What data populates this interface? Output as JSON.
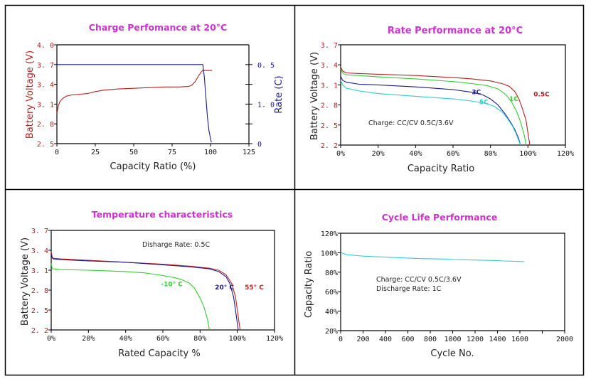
{
  "chart_data": [
    {
      "id": "charge",
      "type": "line",
      "title": "Charge Perfomance at  20°C",
      "xlabel": "Capacity Ratio (%)",
      "ylabel": "Battery Voltage (V)",
      "y2label": "Rate (C)",
      "xlim": [
        0,
        125
      ],
      "ylim": [
        2.5,
        4.0
      ],
      "xticks": [
        "0",
        "25",
        "50",
        "75",
        "100",
        "125"
      ],
      "xtick_values": [
        0,
        25,
        50,
        75,
        100,
        125
      ],
      "yticks": [
        "2. 5",
        "2. 8",
        "3. 1",
        "3. 4",
        "3. 7",
        "4. 0"
      ],
      "ytick_values": [
        2.5,
        2.8,
        3.1,
        3.4,
        3.7,
        4.0
      ],
      "y2ticks": [
        {
          "label": "0.  5",
          "at_y": 3.7
        },
        {
          "label": "",
          "at_y": 3.4
        },
        {
          "label": "1. 0",
          "at_y": 3.1
        },
        {
          "label": "",
          "at_y": 2.8
        },
        {
          "label": "0",
          "at_y": 2.5
        }
      ],
      "grid": false,
      "series": [
        {
          "name": "Voltage",
          "axis": "left",
          "color": "#b22222",
          "x": [
            0,
            1,
            2,
            4,
            6,
            10,
            15,
            20,
            25,
            30,
            40,
            50,
            60,
            70,
            80,
            86,
            88,
            90,
            92,
            94,
            95,
            97,
            101
          ],
          "y": [
            2.96,
            3.08,
            3.14,
            3.19,
            3.22,
            3.24,
            3.25,
            3.26,
            3.29,
            3.31,
            3.33,
            3.34,
            3.35,
            3.36,
            3.36,
            3.37,
            3.39,
            3.44,
            3.52,
            3.59,
            3.61,
            3.61,
            3.61
          ]
        },
        {
          "name": "Rate",
          "axis": "right",
          "color": "#1a1a8c",
          "note": "values plotted in left-axis units as drawn (top level labelled 0.5, bottom labelled 0)",
          "x": [
            0,
            95,
            96,
            97,
            98,
            99,
            100,
            100.5
          ],
          "y": [
            3.7,
            3.7,
            3.5,
            3.2,
            2.9,
            2.7,
            2.58,
            2.52
          ]
        }
      ]
    },
    {
      "id": "rate",
      "type": "line",
      "title": "Rate Performance at 20°C",
      "xlabel": "Capacity Ratio",
      "ylabel": "Battery Voltage (V)",
      "xlim": [
        0,
        120
      ],
      "ylim": [
        2.2,
        3.7
      ],
      "xticks": [
        "0%",
        "20%",
        "40%",
        "60%",
        "80%",
        "100%",
        "120%"
      ],
      "xtick_values": [
        0,
        20,
        40,
        60,
        80,
        100,
        120
      ],
      "yticks": [
        "2. 2",
        "2. 5",
        "2. 8",
        "3. 1",
        "3. 4",
        "3. 7"
      ],
      "ytick_values": [
        2.2,
        2.5,
        2.8,
        3.1,
        3.4,
        3.7
      ],
      "grid": false,
      "annotation": "Charge: CC/CV 0.5C/3.6V",
      "series": [
        {
          "name": "0.5C",
          "color": "#b22222",
          "x": [
            0,
            1,
            3,
            10,
            20,
            40,
            60,
            70,
            80,
            86,
            90,
            93,
            95,
            97,
            99,
            100,
            101
          ],
          "y": [
            3.37,
            3.31,
            3.28,
            3.27,
            3.26,
            3.24,
            3.21,
            3.19,
            3.16,
            3.12,
            3.08,
            3.0,
            2.9,
            2.75,
            2.57,
            2.38,
            2.2
          ]
        },
        {
          "name": "1C",
          "color": "#33cc33",
          "x": [
            0,
            1,
            3,
            10,
            20,
            40,
            60,
            70,
            78,
            84,
            88,
            91,
            94,
            96,
            98,
            99
          ],
          "y": [
            3.34,
            3.28,
            3.25,
            3.24,
            3.22,
            3.19,
            3.15,
            3.12,
            3.09,
            3.04,
            2.96,
            2.86,
            2.7,
            2.55,
            2.35,
            2.2
          ]
        },
        {
          "name": "3C",
          "color": "#1a1a8c",
          "x": [
            0,
            1,
            3,
            10,
            20,
            40,
            60,
            70,
            76,
            80,
            84,
            88,
            91,
            93,
            95,
            96
          ],
          "y": [
            3.23,
            3.17,
            3.14,
            3.11,
            3.1,
            3.07,
            3.03,
            2.99,
            2.95,
            2.89,
            2.8,
            2.66,
            2.53,
            2.43,
            2.3,
            2.2
          ]
        },
        {
          "name": "5C",
          "color": "#33cccc",
          "x": [
            0,
            1,
            3,
            10,
            20,
            40,
            60,
            70,
            78,
            82,
            86,
            89,
            92,
            94,
            96
          ],
          "y": [
            3.17,
            3.1,
            3.05,
            3.01,
            2.97,
            2.93,
            2.89,
            2.86,
            2.82,
            2.78,
            2.7,
            2.6,
            2.47,
            2.35,
            2.2
          ]
        }
      ],
      "series_labels": [
        {
          "text": "0.5C",
          "x": 103,
          "y": 2.93,
          "color": "#b22222"
        },
        {
          "text": "1C",
          "x": 90,
          "y": 2.86,
          "color": "#33cc33"
        },
        {
          "text": "3C",
          "x": 70,
          "y": 2.96,
          "color": "#1a1a8c"
        },
        {
          "text": "5C",
          "x": 74,
          "y": 2.81,
          "color": "#33cccc"
        }
      ]
    },
    {
      "id": "temperature",
      "type": "line",
      "title": "Temperature characteristics",
      "xlabel": "Rated Capacity %",
      "ylabel": "Battery Voltage (V)",
      "xlim": [
        0,
        120
      ],
      "ylim": [
        2.2,
        3.7
      ],
      "xticks": [
        "0%",
        "20%",
        "40%",
        "60%",
        "80%",
        "100%",
        "120%"
      ],
      "xtick_values": [
        0,
        20,
        40,
        60,
        80,
        100,
        120
      ],
      "yticks": [
        "2. 2",
        "2. 5",
        "2. 8",
        "3. 1",
        "3. 4",
        "3. 7"
      ],
      "ytick_values": [
        2.2,
        2.5,
        2.8,
        3.1,
        3.4,
        3.7
      ],
      "grid": false,
      "annotation": "Disharge Rate: 0.5C",
      "series": [
        {
          "name": "55° C",
          "color": "#cc2222",
          "x": [
            0,
            0.5,
            1,
            5,
            20,
            40,
            60,
            75,
            85,
            90,
            94,
            97,
            99,
            100,
            101,
            101.5
          ],
          "y": [
            3.38,
            3.3,
            3.28,
            3.27,
            3.25,
            3.22,
            3.19,
            3.16,
            3.13,
            3.1,
            3.03,
            2.9,
            2.7,
            2.5,
            2.3,
            2.2
          ]
        },
        {
          "name": "20° C",
          "color": "#1a1a8c",
          "x": [
            0,
            0.5,
            1,
            5,
            20,
            40,
            60,
            75,
            85,
            90,
            94,
            96,
            98,
            99,
            100,
            100.5
          ],
          "y": [
            3.35,
            3.29,
            3.27,
            3.26,
            3.24,
            3.22,
            3.18,
            3.15,
            3.12,
            3.08,
            3.0,
            2.9,
            2.7,
            2.5,
            2.3,
            2.2
          ]
        },
        {
          "name": "-10° C",
          "color": "#33cc33",
          "x": [
            0,
            0.5,
            1,
            5,
            20,
            40,
            50,
            60,
            66,
            70,
            74,
            77,
            80,
            82,
            84,
            85
          ],
          "y": [
            3.2,
            3.13,
            3.12,
            3.11,
            3.1,
            3.08,
            3.06,
            3.02,
            2.99,
            2.96,
            2.91,
            2.83,
            2.68,
            2.55,
            2.36,
            2.2
          ]
        }
      ],
      "series_labels": [
        {
          "text": "-10° C",
          "x": 59,
          "y": 2.86,
          "color": "#33cc33"
        },
        {
          "text": "20° C",
          "x": 88,
          "y": 2.81,
          "color": "#1a1a8c"
        },
        {
          "text": "55° C",
          "x": 104,
          "y": 2.81,
          "color": "#cc2222"
        }
      ]
    },
    {
      "id": "cycle",
      "type": "line",
      "title": "Cycle Life Performance",
      "xlabel": "Cycle No.",
      "ylabel": "Capacity Ratio",
      "xlim": [
        0,
        2000
      ],
      "ylim": [
        20,
        120
      ],
      "xticks": [
        "0",
        "200",
        "400",
        "600",
        "800",
        "1000",
        "1200",
        "1400",
        "1600",
        "2000"
      ],
      "xtick_values": [
        0,
        200,
        400,
        600,
        800,
        1000,
        1200,
        1400,
        1600,
        2000
      ],
      "xtick_marks": [
        0,
        200,
        400,
        600,
        800,
        1000,
        1200,
        1400,
        1600,
        1800,
        2000
      ],
      "yticks": [
        "20%",
        "40%",
        "60%",
        "80%",
        "100%",
        "120%"
      ],
      "ytick_values": [
        20,
        40,
        60,
        80,
        100,
        120
      ],
      "grid": false,
      "annotation": [
        "Charge: CC/CV 0.5C/3.6V",
        "Discharge Rate: 1C"
      ],
      "series": [
        {
          "name": "Capacity",
          "color": "#33cccc",
          "x": [
            0,
            20,
            50,
            100,
            150,
            200,
            300,
            400,
            500,
            600,
            700,
            800,
            950,
            1000,
            1200,
            1400,
            1450,
            1600,
            1640
          ],
          "y": [
            100,
            99.5,
            98,
            97.5,
            97,
            96.5,
            96,
            95.5,
            95,
            94.5,
            94,
            93.8,
            93.5,
            93,
            92.5,
            92,
            91.5,
            91,
            90.8
          ]
        }
      ]
    }
  ],
  "footer_fragment": ""
}
